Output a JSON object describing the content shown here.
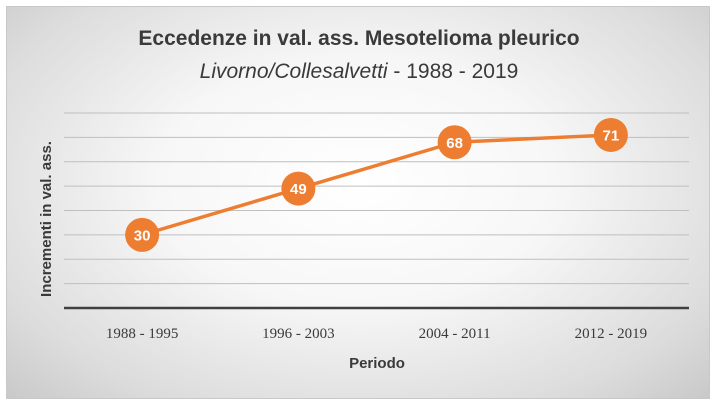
{
  "chart_data": {
    "type": "line",
    "title": "Eccedenze in val. ass. Mesotelioma pleurico",
    "subtitle_italic": "Livorno/Collesalvetti",
    "subtitle_rest": " - 1988 - 2019",
    "xlabel": "Periodo",
    "ylabel": "Incrementi in val. ass.",
    "categories": [
      "1988 - 1995",
      "1996 - 2003",
      "2004 - 2011",
      "2012 - 2019"
    ],
    "series": [
      {
        "values": [
          30,
          49,
          68,
          71
        ]
      }
    ],
    "ylim": [
      0,
      80
    ],
    "y_tick_step": 10,
    "y_tick_labels_shown": false,
    "grid": true,
    "data_labels": true,
    "legend": "none",
    "colors": {
      "line": "#ED7D31",
      "marker": "#ED7D31",
      "marker_text": "#FFFFFF",
      "grid": "#bfbfbf",
      "axis": "#404040"
    }
  }
}
